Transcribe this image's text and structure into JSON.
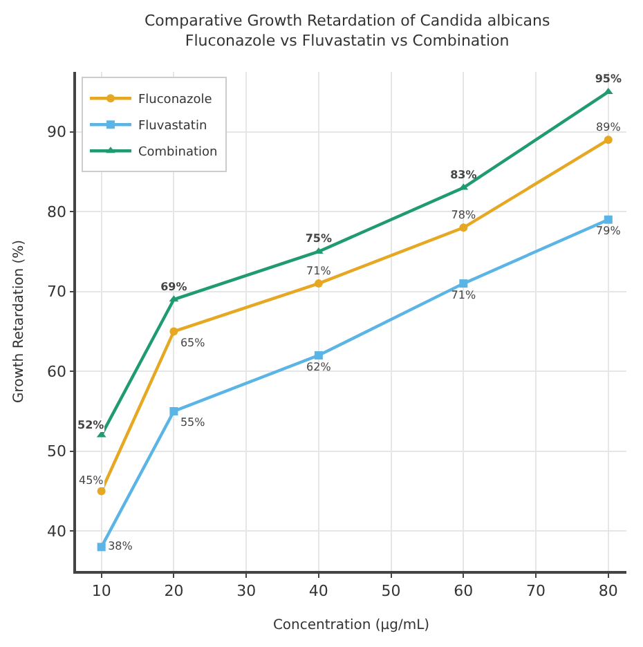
{
  "chart_data": {
    "type": "line",
    "title": "Comparative Growth Retardation of Candida albicans\nFluconazole vs Fluvastatin vs Combination",
    "xlabel": "Concentration (μg/mL)",
    "ylabel": "Growth Retardation (%)",
    "x": [
      10,
      20,
      40,
      60,
      80
    ],
    "series": [
      {
        "name": "Fluconazole",
        "color": "#e6a823",
        "marker": "circle",
        "values": [
          45,
          65,
          71,
          78,
          89
        ],
        "value_labels": [
          "45%",
          "65%",
          "71%",
          "78%",
          "89%"
        ]
      },
      {
        "name": "Fluvastatin",
        "color": "#5ab4e5",
        "marker": "square",
        "values": [
          38,
          55,
          62,
          71,
          79
        ],
        "value_labels": [
          "38%",
          "55%",
          "62%",
          "71%",
          "79%"
        ]
      },
      {
        "name": "Combination",
        "color": "#1f9a73",
        "marker": "triangle",
        "values": [
          52,
          69,
          75,
          83,
          95
        ],
        "value_labels": [
          "52%",
          "69%",
          "75%",
          "83%",
          "95%"
        ]
      }
    ],
    "xlim": [
      6.5,
      82.5
    ],
    "ylim": [
      35,
      97.5
    ],
    "xticks": [
      10,
      20,
      30,
      40,
      50,
      60,
      70,
      80
    ],
    "yticks": [
      40,
      50,
      60,
      70,
      80,
      90
    ],
    "grid": true,
    "legend": "top left",
    "line_style": "solid"
  }
}
